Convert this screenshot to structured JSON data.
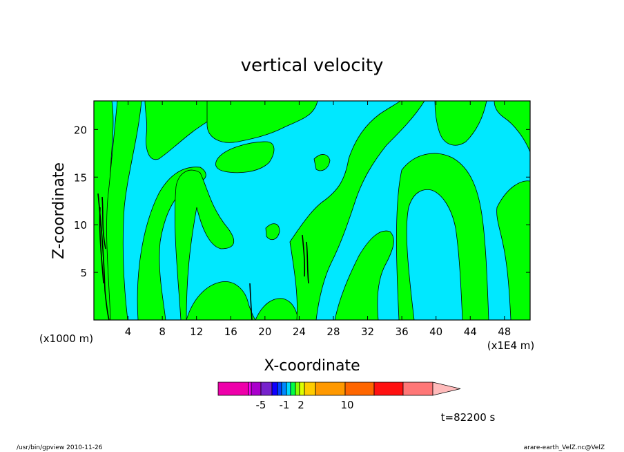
{
  "chart_data": {
    "type": "heatmap",
    "title": "vertical velocity",
    "xlabel": "X-coordinate",
    "ylabel": "Z-coordinate",
    "x_unit": "(x1E4 m)",
    "y_unit": "(x1000 m)",
    "xlim": [
      0,
      51
    ],
    "ylim": [
      0,
      23
    ],
    "x_ticks": [
      4,
      8,
      12,
      16,
      20,
      24,
      28,
      32,
      36,
      40,
      44,
      48
    ],
    "y_ticks": [
      5,
      10,
      15,
      20
    ],
    "grid": false,
    "colors": {
      "positive": "#00ff00",
      "negative": "#00e8ff",
      "contour": "#000000"
    },
    "colorbar": {
      "segments": [
        "#ee00aa",
        "#ff00ff",
        "#aa00cc",
        "#7722cc",
        "#1100ff",
        "#0044ff",
        "#0088ff",
        "#00d8ff",
        "#00ff44",
        "#88ff00",
        "#ddff00",
        "#ffcc00",
        "#ff9900",
        "#ff6600",
        "#ff1111",
        "#ff7777",
        "#ffbbbb"
      ],
      "tick_labels": [
        "-5",
        "-1",
        "2",
        "10"
      ]
    },
    "time_label": "t=82200 s"
  },
  "footer": {
    "left": "/usr/bin/gpview  2010-11-26",
    "right": "arare-earth_VelZ.nc@VelZ"
  }
}
